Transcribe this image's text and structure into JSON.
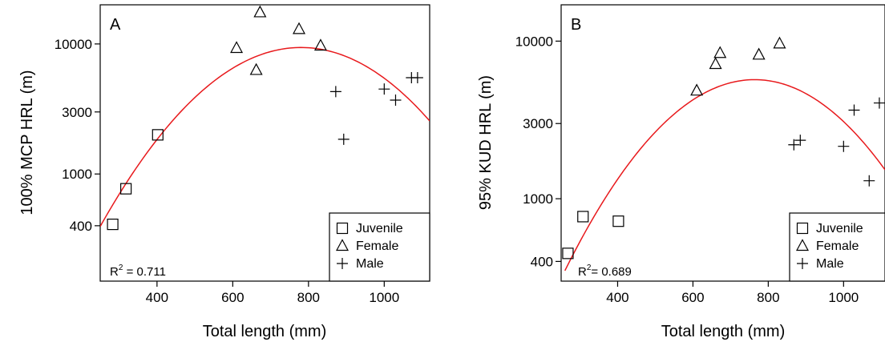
{
  "chart_data": [
    {
      "type": "scatter",
      "panel_label": "A",
      "xlabel": "Total length (mm)",
      "ylabel": "100% MCP HRL (m)",
      "y_scale": "log",
      "xlim": [
        250,
        1120
      ],
      "ylim": [
        150,
        20000
      ],
      "x_ticks": [
        400,
        600,
        800,
        1000
      ],
      "y_ticks": [
        400,
        1000,
        3000,
        10000
      ],
      "r2": {
        "prefix": "R",
        "sup": "2",
        "value": " = 0.711"
      },
      "legend_position": "bottom-right",
      "series": [
        {
          "name": "Juvenile",
          "marker": "square",
          "points": [
            [
              283,
              410
            ],
            [
              318,
              770
            ],
            [
              402,
              2000
            ]
          ]
        },
        {
          "name": "Female",
          "marker": "triangle",
          "points": [
            [
              610,
              9300
            ],
            [
              662,
              6300
            ],
            [
              672,
              17500
            ],
            [
              775,
              13000
            ],
            [
              832,
              9700
            ]
          ]
        },
        {
          "name": "Male",
          "marker": "plus",
          "points": [
            [
              872,
              4300
            ],
            [
              893,
              1850
            ],
            [
              1000,
              4500
            ],
            [
              1030,
              3700
            ],
            [
              1072,
              5500
            ],
            [
              1088,
              5500
            ]
          ]
        }
      ],
      "fit_curve": {
        "color": "#e8191c",
        "x": [
          250,
          400,
          550,
          700,
          780,
          900,
          1000,
          1120
        ],
        "y": [
          390,
          1860,
          5350,
          8550,
          9080,
          7930,
          5700,
          2520
        ]
      }
    },
    {
      "type": "scatter",
      "panel_label": "B",
      "xlabel": "Total length (mm)",
      "ylabel": "95% KUD HRL (m)",
      "y_scale": "log",
      "xlim": [
        250,
        1110
      ],
      "ylim": [
        300,
        17000
      ],
      "x_ticks": [
        400,
        600,
        800,
        1000
      ],
      "y_ticks": [
        400,
        1000,
        3000,
        10000
      ],
      "r2": {
        "prefix": "R",
        "sup": "2",
        "value": "= 0.689"
      },
      "legend_position": "bottom-right",
      "series": [
        {
          "name": "Juvenile",
          "marker": "square",
          "points": [
            [
              268,
              450
            ],
            [
              308,
              770
            ],
            [
              402,
              720
            ]
          ]
        },
        {
          "name": "Female",
          "marker": "triangle",
          "points": [
            [
              610,
              4850
            ],
            [
              660,
              7150
            ],
            [
              672,
              8400
            ],
            [
              775,
              8200
            ],
            [
              830,
              9650
            ]
          ]
        },
        {
          "name": "Male",
          "marker": "plus",
          "points": [
            [
              868,
              2200
            ],
            [
              885,
              2350
            ],
            [
              1000,
              2150
            ],
            [
              1028,
              3650
            ],
            [
              1068,
              1300
            ],
            [
              1095,
              4050
            ]
          ]
        }
      ],
      "fit_curve": {
        "color": "#e8191c",
        "x": [
          260,
          400,
          550,
          700,
          770,
          900,
          1000,
          1110
        ],
        "y": [
          330,
          1420,
          3600,
          5400,
          5600,
          4450,
          2950,
          1620
        ]
      }
    }
  ]
}
